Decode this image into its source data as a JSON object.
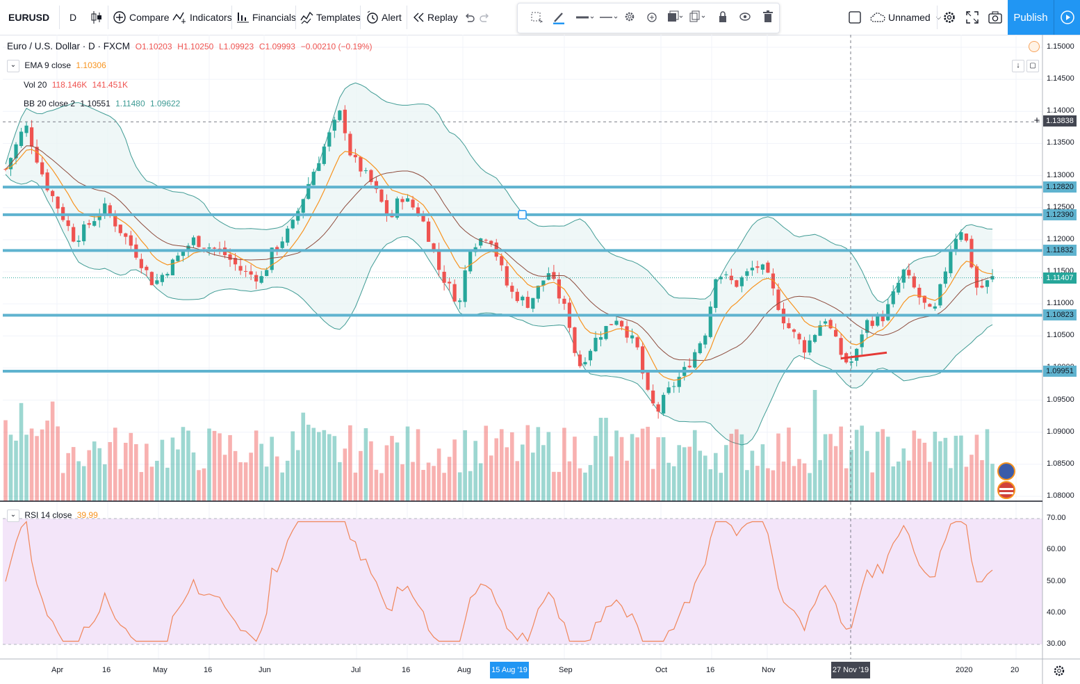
{
  "toolbar": {
    "symbol": "EURUSD",
    "interval": "D",
    "compare": "Compare",
    "indicators": "Indicators",
    "financials": "Financials",
    "templates": "Templates",
    "alert": "Alert",
    "replay": "Replay",
    "layout_name": "Unnamed",
    "publish": "Publish"
  },
  "legend": {
    "instrument": "Euro / U.S. Dollar · D · FXCM",
    "open": "O1.10203",
    "high": "H1.10250",
    "low": "L1.09923",
    "close": "C1.09993",
    "change": "−0.00210 (−0.19%)",
    "ema_label": "EMA 9 close",
    "ema_value": "1.10306",
    "vol_label": "Vol 20",
    "vol_value1": "118.146K",
    "vol_value2": "141.451K",
    "bb_label": "BB 20 close 2",
    "bb_basis": "1.10551",
    "bb_upper": "1.11480",
    "bb_lower": "1.09622",
    "rsi_label": "RSI 14 close",
    "rsi_value": "39.99"
  },
  "price_axis": {
    "ticks": [
      "1.15000",
      "1.14500",
      "1.14000",
      "1.13500",
      "1.13000",
      "1.12500",
      "1.12000",
      "1.11500",
      "1.11000",
      "1.10500",
      "1.10000",
      "1.09500",
      "1.09000",
      "1.08500",
      "1.08000"
    ],
    "crosshair_price": "1.13838",
    "level_tags": [
      {
        "price": "1.12820",
        "color": "#5fb3cf"
      },
      {
        "price": "1.12390",
        "color": "#5fb3cf"
      },
      {
        "price": "1.11832",
        "color": "#5fb3cf"
      },
      {
        "price": "1.11407",
        "color": "#5fb3cf"
      },
      {
        "price": "1.10823",
        "color": "#5fb3cf"
      },
      {
        "price": "1.09951",
        "color": "#5fb3cf"
      }
    ]
  },
  "rsi_axis": {
    "ticks": [
      "70.00",
      "60.00",
      "50.00",
      "40.00",
      "30.00"
    ]
  },
  "time_axis": {
    "ticks": [
      "Apr",
      "16",
      "May",
      "16",
      "Jun",
      "Jul",
      "16",
      "Aug",
      "Sep",
      "Oct",
      "16",
      "Nov",
      "2020",
      "20"
    ],
    "highlight_left": "15 Aug '19",
    "highlight_crosshair": "27 Nov '19"
  },
  "colors": {
    "up": "#26a69a",
    "down": "#ef5350",
    "ema": "#f7931e",
    "basis": "#8d4b3c",
    "bands": "#3f9b94",
    "level": "#5fb3cf",
    "rsi": "#f0865a",
    "accent": "#2196f3"
  },
  "icons": [
    "candles-icon",
    "compare-icon",
    "indicators-icon",
    "financials-icon",
    "templates-icon",
    "alert-icon",
    "replay-icon",
    "undo-icon",
    "redo-icon",
    "cloud-icon",
    "settings-icon",
    "fullscreen-icon",
    "camera-icon",
    "play-icon"
  ]
}
